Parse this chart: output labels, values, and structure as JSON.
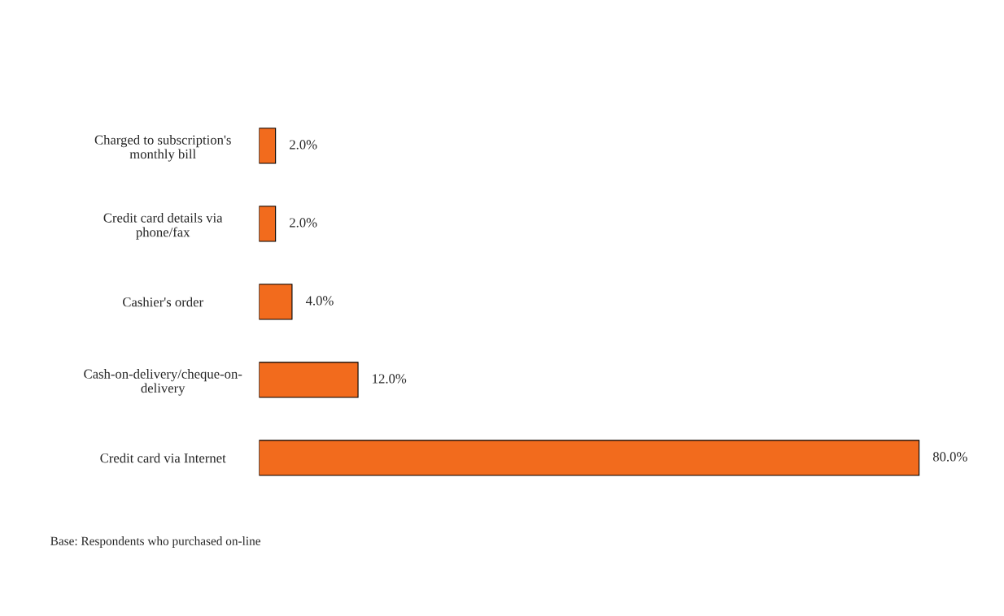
{
  "chart_data": {
    "type": "bar",
    "orientation": "horizontal",
    "categories": [
      "Charged to subscription's\nmonthly bill",
      "Credit card details via\nphone/fax",
      "Cashier's order",
      "Cash-on-delivery/cheque-on-\ndelivery",
      "Credit card via Internet"
    ],
    "values": [
      2.0,
      2.0,
      4.0,
      12.0,
      80.0
    ],
    "value_labels": [
      "2.0%",
      "2.0%",
      "4.0%",
      "12.0%",
      "80.0%"
    ],
    "color": "#f26b1d",
    "grid": false,
    "legend": false,
    "annotations": [
      "Base: Respondents who purchased on-line"
    ]
  }
}
